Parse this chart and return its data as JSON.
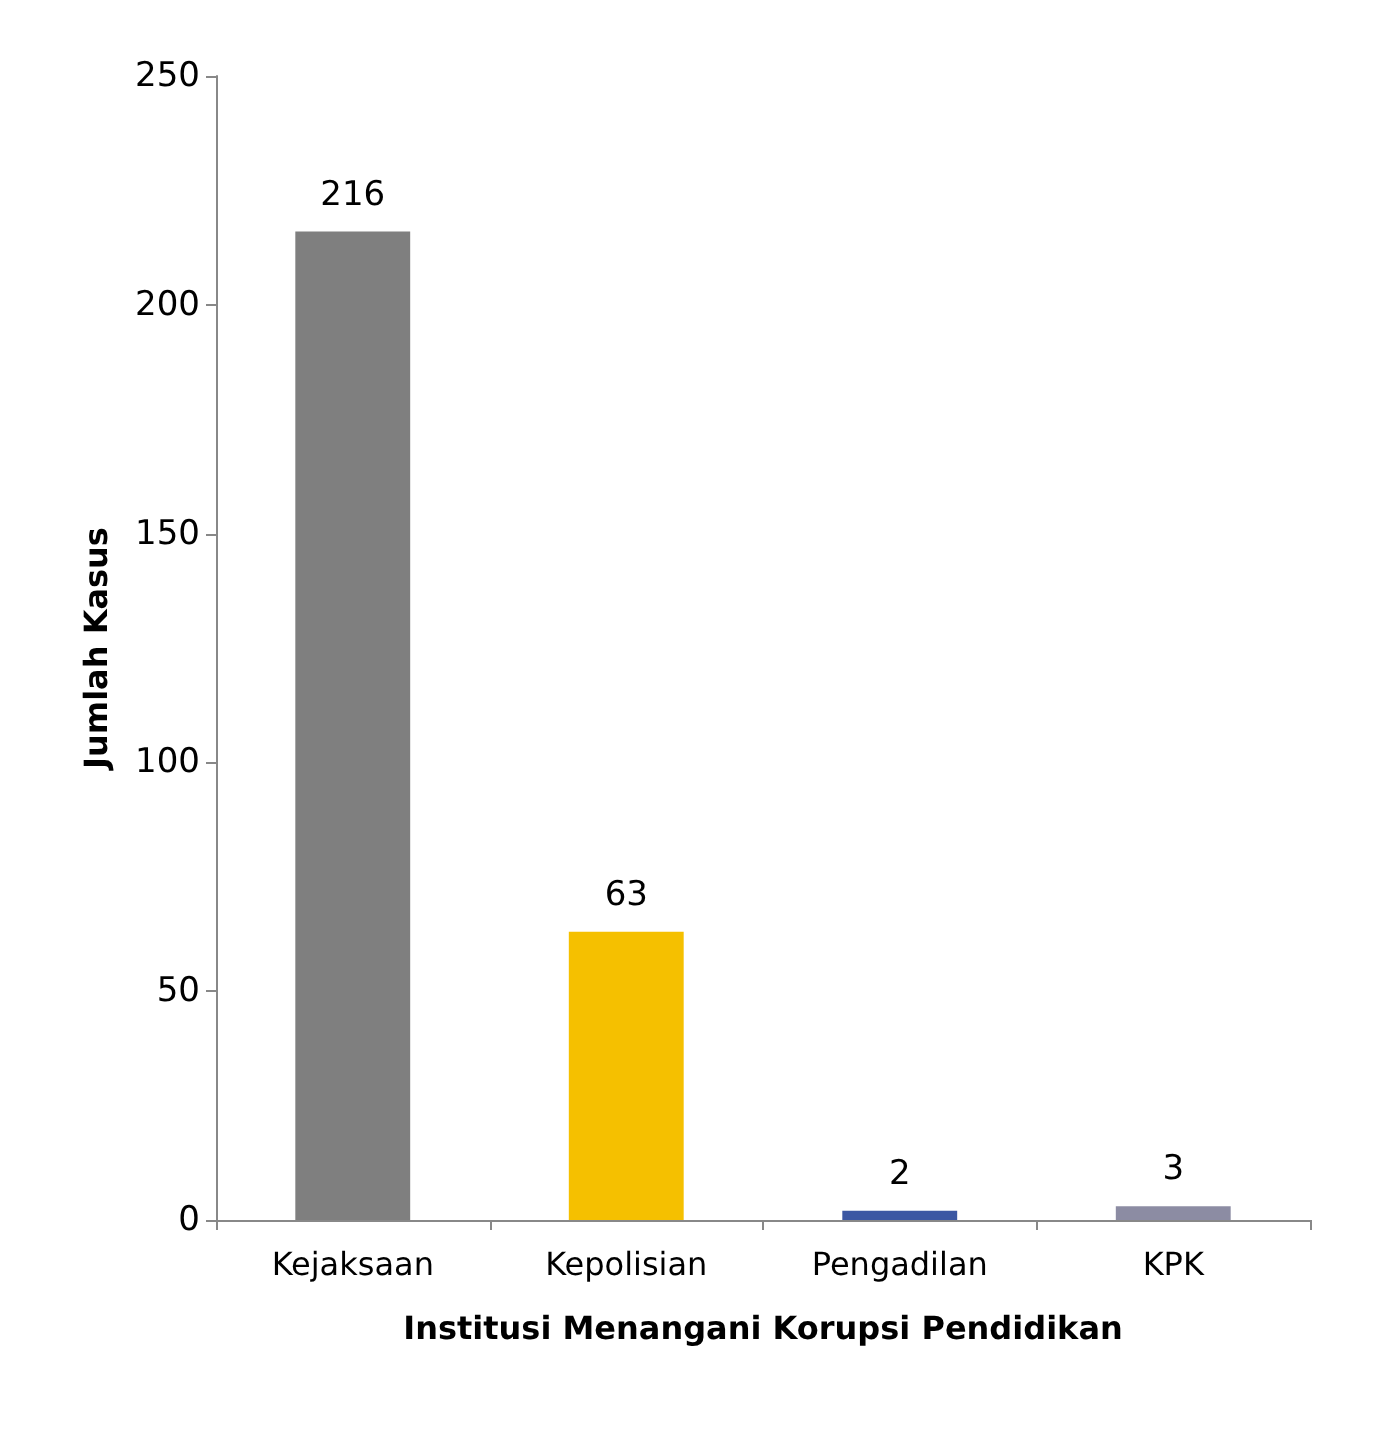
{
  "chart_data": {
    "type": "bar",
    "xlabel": "Institusi Menangani Korupsi Pendidikan",
    "ylabel": "Jumlah Kasus",
    "categories": [
      "Kejaksaan",
      "Kepolisian",
      "Pengadilan",
      "KPK"
    ],
    "values": [
      216,
      63,
      2,
      3
    ],
    "colors": [
      "#7f7f7f",
      "#f5c000",
      "#3b57a3",
      "#8c8ca3"
    ],
    "ylim": [
      0,
      250
    ],
    "yticks": [
      0,
      50,
      100,
      150,
      200,
      250
    ],
    "data_labels": true
  }
}
